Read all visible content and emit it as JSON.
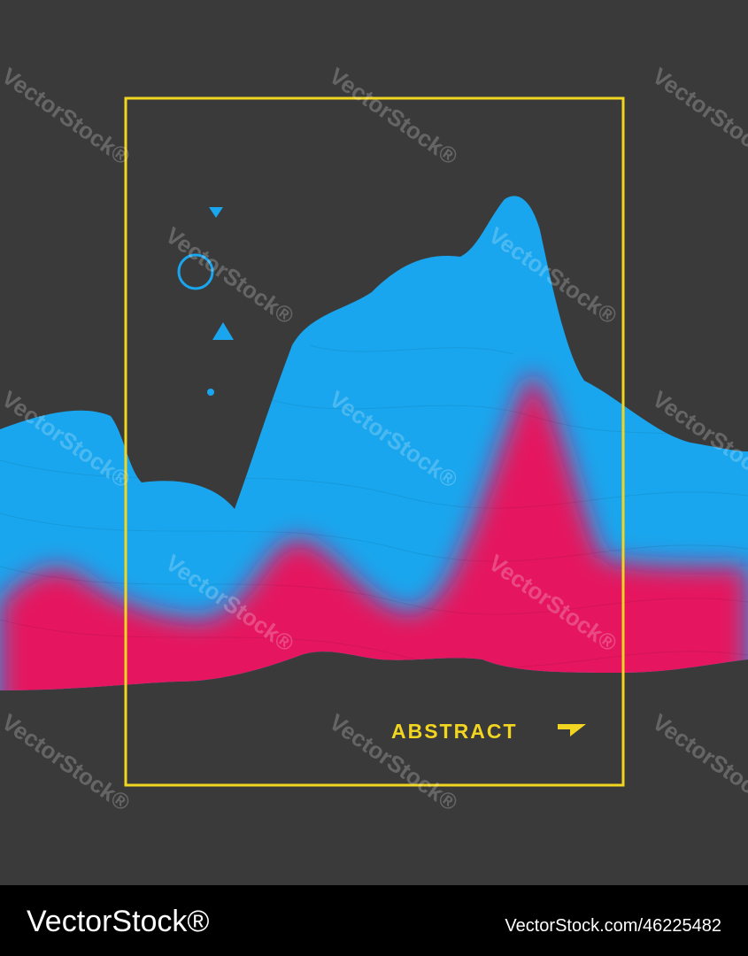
{
  "poster": {
    "title": "ABSTRACT"
  },
  "watermark": "VectorStock®",
  "footer": {
    "brand": "VectorStock®",
    "image_id": "VectorStock.com/46225482"
  }
}
